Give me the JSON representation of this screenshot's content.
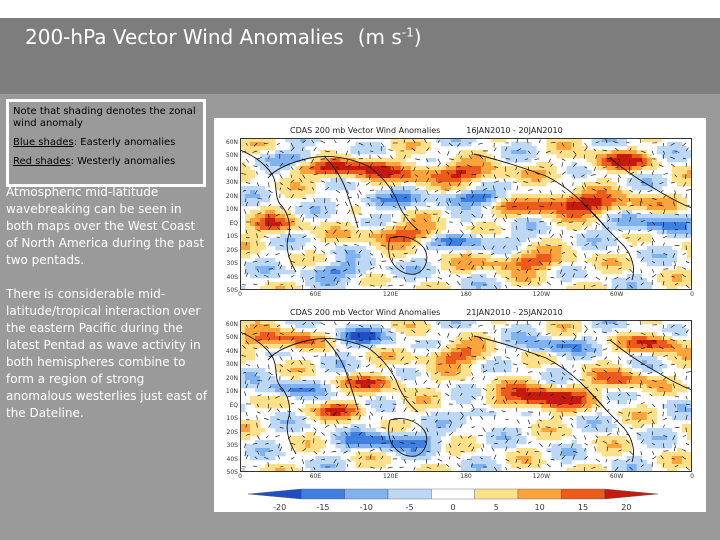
{
  "slide": {
    "title": "200-hPa Vector Wind Anomalies",
    "units_base": "(m s",
    "units_exp": "-1",
    "units_close": ")"
  },
  "note_box": {
    "line1": "Note that shading denotes the zonal wind anomaly",
    "blue_key": "Blue shades",
    "blue_desc": ": Easterly anomalies",
    "red_key": "Red shades",
    "red_desc": ": Westerly anomalies"
  },
  "body": {
    "paragraph1": "Atmospheric mid-latitude wavebreaking can be seen in both maps over the West Coast of North America during the past two pentads.",
    "paragraph2": "There is considerable mid-latitude/tropical interaction over the eastern Pacific during the latest Pentad as wave activity in both hemispheres combine to form a region of strong anomalous westerlies just east of the Dateline."
  },
  "maps": [
    {
      "title": "CDAS 200 mb Vector Wind Anomalies",
      "period": "16JAN2010 - 20JAN2010"
    },
    {
      "title": "CDAS 200 mb Vector Wind Anomalies",
      "period": "21JAN2010 - 25JAN2010"
    }
  ],
  "latitude_labels": [
    "60N",
    "50N",
    "40N",
    "30N",
    "20N",
    "10N",
    "EQ",
    "10S",
    "20S",
    "30S",
    "40S",
    "50S"
  ],
  "longitude_labels": [
    "0",
    "60E",
    "120E",
    "180",
    "120W",
    "60W",
    "0"
  ],
  "colorbar": {
    "labels": [
      "-20",
      "-15",
      "-10",
      "-5",
      "0",
      "5",
      "10",
      "15",
      "20"
    ],
    "colors": [
      "#1f4fc0",
      "#3f7fe0",
      "#7fb2ee",
      "#bcd8f4",
      "#ffffff",
      "#fde08a",
      "#fba43c",
      "#ec5a1c",
      "#c41a10"
    ]
  },
  "colors": {
    "title_band": "#7d7d7d",
    "background": "#9a9a9a",
    "text": "#ffffff"
  }
}
